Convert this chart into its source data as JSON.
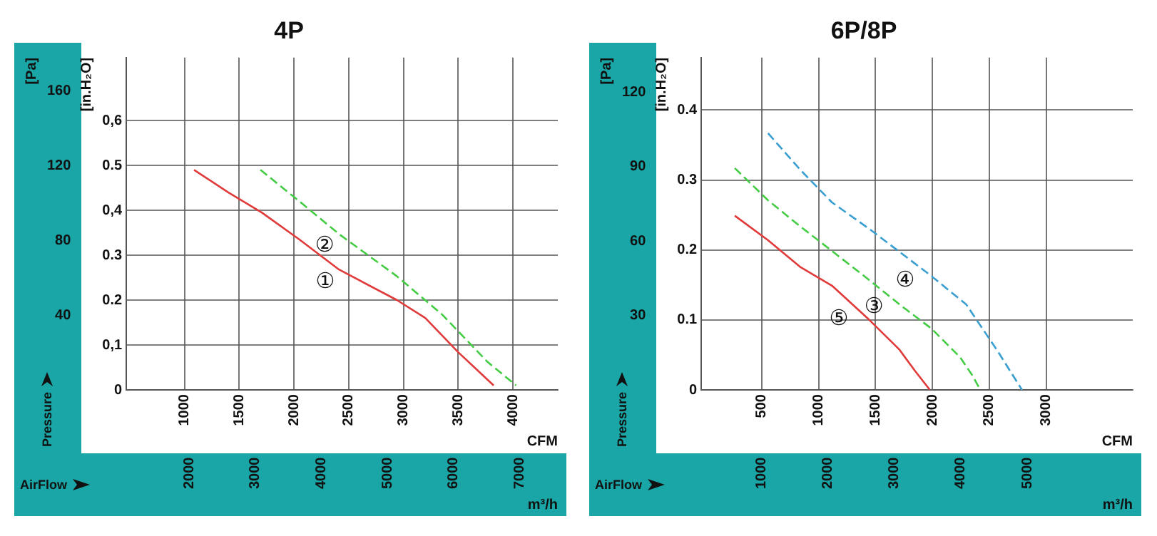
{
  "chart_data": [
    {
      "type": "line",
      "title": "4P",
      "xlabel": "CFM",
      "x2label": "m³/h",
      "ylabel": "[in.H₂O]",
      "y2label": "[Pa]",
      "xlim": [
        470,
        4410
      ],
      "xticks": [
        1000,
        1500,
        2000,
        2500,
        3000,
        3500,
        4000
      ],
      "x2lim": [
        1050,
        7580
      ],
      "x2ticks": [
        2000,
        3000,
        4000,
        5000,
        6000,
        7000
      ],
      "ylim": [
        0,
        0.74
      ],
      "yticks": [
        0,
        {
          "value": 0.1,
          "label": "0,1"
        },
        0.2,
        0.3,
        {
          "value": 0.4,
          "label": "0,4"
        },
        0.5,
        {
          "value": 0.6,
          "label": "0,6"
        }
      ],
      "y2lim": [
        0,
        178
      ],
      "y2ticks": [
        40,
        80,
        120,
        160
      ],
      "grid": true,
      "series": [
        {
          "color": "#e03a3a",
          "line_style": "solid",
          "x": [
            1088,
            1400,
            1706,
            2050,
            2412,
            2941,
            3200,
            3500,
            3824
          ],
          "values": [
            0.49,
            0.44,
            0.395,
            0.335,
            0.268,
            0.2,
            0.16,
            0.084,
            0.01
          ]
        },
        {
          "color": "#44cc44",
          "line_style": "dashed",
          "x": [
            1694,
            2050,
            2412,
            2941,
            3353,
            3765,
            4029
          ],
          "values": [
            0.49,
            0.42,
            0.347,
            0.253,
            0.168,
            0.063,
            0.01
          ]
        }
      ],
      "annotations": [
        {
          "text": "②",
          "x": 2424,
          "y": 0.356
        },
        {
          "text": "①",
          "x": 2430,
          "y": 0.274
        },
        "Pressure",
        "AirFlow"
      ]
    },
    {
      "type": "line",
      "title": "6P/8P",
      "xlabel": "CFM",
      "x2label": "m³/h",
      "ylabel": "[in.H₂O]",
      "y2label": "[Pa]",
      "xlim": [
        -30,
        3760
      ],
      "xticks": [
        500,
        1000,
        1500,
        2000,
        2500,
        3000
      ],
      "x2lim": [
        90,
        6590
      ],
      "x2ticks": [
        1000,
        2000,
        3000,
        4000,
        5000
      ],
      "ylim": [
        0,
        0.475
      ],
      "yticks": [
        0,
        0.1,
        0.2,
        0.3,
        0.4
      ],
      "y2lim": [
        0,
        134
      ],
      "y2ticks": [
        30,
        60,
        90,
        120
      ],
      "grid": true,
      "series": [
        {
          "color": "#3a9fd0",
          "line_style": "dashed",
          "x": [
            556,
            837,
            1118,
            1455,
            1989,
            2298,
            2579,
            2787
          ],
          "values": [
            0.367,
            0.315,
            0.268,
            0.229,
            0.163,
            0.122,
            0.054,
            0
          ]
        },
        {
          "color": "#44cc44",
          "line_style": "dashed",
          "x": [
            264,
            556,
            837,
            1399,
            1736,
            1989,
            2242,
            2354,
            2421
          ],
          "values": [
            0.317,
            0.271,
            0.234,
            0.163,
            0.119,
            0.088,
            0.047,
            0.02,
            0
          ]
        },
        {
          "color": "#e03a3a",
          "line_style": "solid",
          "x": [
            264,
            556,
            837,
            1118,
            1427,
            1708,
            1848,
            1978
          ],
          "values": [
            0.249,
            0.214,
            0.176,
            0.149,
            0.103,
            0.058,
            0.027,
            0
          ]
        }
      ],
      "annotations": [
        {
          "text": "④",
          "x": 1899,
          "y": 0.178
        },
        {
          "text": "③",
          "x": 1624,
          "y": 0.14
        },
        {
          "text": "⑤",
          "x": 1315,
          "y": 0.123
        },
        "Pressure",
        "AirFlow"
      ]
    }
  ]
}
